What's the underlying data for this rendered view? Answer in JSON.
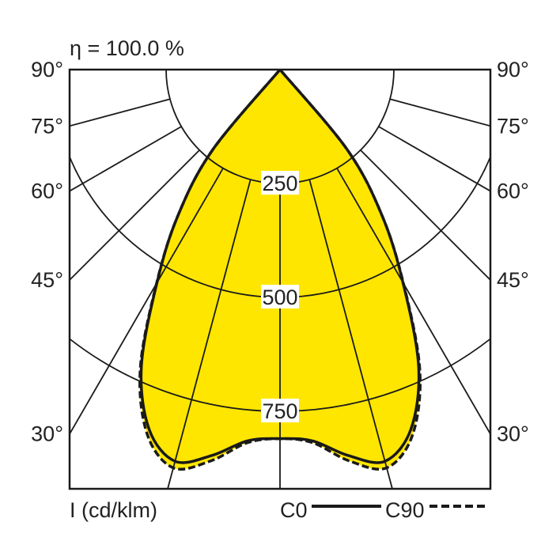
{
  "chart_data": {
    "type": "polar",
    "title": "η = 100.0 %",
    "unit_label": "I (cd/klm)",
    "angle_labels": [
      "90°",
      "75°",
      "60°",
      "45°",
      "30°"
    ],
    "angle_ticks_deg": [
      90,
      75,
      60,
      45,
      30
    ],
    "radial_tick_labels": [
      "250",
      "500",
      "750"
    ],
    "radial_ticks": [
      250,
      500,
      750
    ],
    "grid": true,
    "fill_color": "#ffe600",
    "line_color": "#1a1a1a",
    "angles_deg": [
      0,
      5,
      10,
      15,
      20,
      25,
      30,
      35,
      40,
      45
    ],
    "series": [
      {
        "name": "C0",
        "style": "solid",
        "values": [
          810,
          818,
          860,
          890,
          840,
          720,
          540,
          390,
          230,
          0
        ]
      },
      {
        "name": "C90",
        "style": "dashed",
        "values": [
          810,
          822,
          872,
          905,
          852,
          726,
          542,
          390,
          230,
          0
        ]
      }
    ],
    "legend": {
      "position": "bottom-right",
      "items": [
        "C0",
        "C90"
      ]
    }
  }
}
